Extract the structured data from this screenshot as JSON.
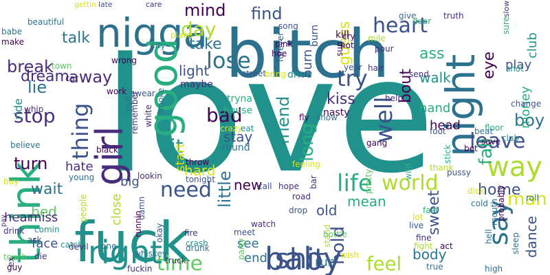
{
  "colors": {
    "purple": "#440154",
    "indigo": "#472d7b",
    "slate": "#3b528b",
    "steel": "#2c728e",
    "teal": "#21918c",
    "sea": "#28ae80",
    "green": "#5ec962",
    "lime": "#addc30",
    "yellow": "#d8e219"
  },
  "words": [
    {
      "text": "love",
      "color": "#21918c"
    },
    {
      "text": "baby",
      "color": "#3b528b"
    },
    {
      "text": "fuck",
      "color": "#21918c"
    },
    {
      "text": "bitch",
      "color": "#2c728e"
    },
    {
      "text": "think",
      "color": "#28ae80"
    },
    {
      "text": "nigga",
      "color": "#2c728e"
    },
    {
      "text": "night",
      "color": "#2c728e"
    },
    {
      "text": "way",
      "color": "#addc30"
    },
    {
      "text": "time",
      "color": "#5ec962"
    },
    {
      "text": "girl",
      "color": "#472d7b"
    },
    {
      "text": "good",
      "color": "#28ae80"
    },
    {
      "text": "right",
      "color": "#21918c"
    },
    {
      "text": "shit",
      "color": "#3b528b"
    },
    {
      "text": "feel",
      "color": "#addc30"
    },
    {
      "text": "life",
      "color": "#28ae80"
    },
    {
      "text": "need",
      "color": "#3b528b"
    },
    {
      "text": "say",
      "color": "#2c728e"
    },
    {
      "text": "heart",
      "color": "#3b528b"
    },
    {
      "text": "lose",
      "color": "#2c728e"
    },
    {
      "text": "bad",
      "color": "#440154"
    },
    {
      "text": "leave",
      "color": "#3b528b"
    },
    {
      "text": "thing",
      "color": "#3b528b"
    },
    {
      "text": "day",
      "color": "#addc30"
    },
    {
      "text": "world",
      "color": "#addc30"
    },
    {
      "text": "stop",
      "color": "#472d7b"
    },
    {
      "text": "try",
      "color": "#3b528b"
    },
    {
      "text": "well",
      "color": "#3b528b"
    },
    {
      "text": "hit",
      "color": "#21918c"
    },
    {
      "text": "boy",
      "color": "#2c728e"
    },
    {
      "text": "man",
      "color": "#d8e219"
    },
    {
      "text": "turn",
      "color": "#440154"
    },
    {
      "text": "wait",
      "color": "#2c728e"
    },
    {
      "text": "home",
      "color": "#3b528b"
    },
    {
      "text": "mind",
      "color": "#440154"
    },
    {
      "text": "break",
      "color": "#472d7b"
    },
    {
      "text": "find",
      "color": "#3b528b"
    },
    {
      "text": "take",
      "color": "#2c728e"
    },
    {
      "text": "talk",
      "color": "#2c728e"
    },
    {
      "text": "away",
      "color": "#472d7b"
    },
    {
      "text": "dream",
      "color": "#472d7b"
    },
    {
      "text": "lie",
      "color": "#2c728e"
    },
    {
      "text": "light",
      "color": "#3b528b"
    },
    {
      "text": "ass",
      "color": "#28ae80"
    },
    {
      "text": "eye",
      "color": "#440154"
    },
    {
      "text": "friend",
      "color": "#21918c"
    },
    {
      "text": "long",
      "color": "#28ae80"
    },
    {
      "text": "bout",
      "color": "#440154"
    },
    {
      "text": "kiss",
      "color": "#472d7b"
    },
    {
      "text": "fall",
      "color": "#28ae80"
    },
    {
      "text": "hand",
      "color": "#28ae80"
    },
    {
      "text": "walk",
      "color": "#21918c"
    },
    {
      "text": "play",
      "color": "#3b528b"
    },
    {
      "text": "guess",
      "color": "#d8e219"
    },
    {
      "text": "burn",
      "color": "#3b528b"
    },
    {
      "text": "hold",
      "color": "#3b528b"
    },
    {
      "text": "little",
      "color": "#2c728e"
    },
    {
      "text": "big",
      "color": "#3b528b"
    },
    {
      "text": "stay",
      "color": "#3b528b"
    },
    {
      "text": "hate",
      "color": "#472d7b"
    },
    {
      "text": "bed",
      "color": "#5ec962"
    },
    {
      "text": "mean",
      "color": "#28ae80"
    },
    {
      "text": "sweet",
      "color": "#3b528b"
    },
    {
      "text": "hear",
      "color": "#472d7b"
    },
    {
      "text": "miss",
      "color": "#472d7b"
    },
    {
      "text": "hard",
      "color": "#d8e219"
    },
    {
      "text": "new",
      "color": "#440154"
    },
    {
      "text": "old",
      "color": "#3b528b"
    },
    {
      "text": "head",
      "color": "#440154"
    },
    {
      "text": "close",
      "color": "#addc30"
    },
    {
      "text": "face",
      "color": "#3b528b"
    },
    {
      "text": "see",
      "color": "#2c728e"
    },
    {
      "text": "end",
      "color": "#2c728e"
    },
    {
      "text": "run",
      "color": "#2c728e"
    },
    {
      "text": "body",
      "color": "#2c728e"
    },
    {
      "text": "dance",
      "color": "#3b528b"
    },
    {
      "text": "money",
      "color": "#28ae80"
    },
    {
      "text": "club",
      "color": "#21918c"
    },
    {
      "text": "start",
      "color": "#d8e219"
    },
    {
      "text": "ride",
      "color": "#21918c"
    },
    {
      "text": "maybe",
      "color": "#472d7b"
    },
    {
      "text": "house",
      "color": "#28ae80"
    },
    {
      "text": "tryna",
      "color": "#28ae80"
    },
    {
      "text": "round",
      "color": "#2c728e"
    },
    {
      "text": "kill",
      "color": "#440154"
    },
    {
      "text": "burn",
      "color": "#3b528b"
    },
    {
      "text": "song",
      "color": "#3b528b"
    },
    {
      "text": "forever",
      "color": "#3b528b"
    },
    {
      "text": "pink",
      "color": "#440154"
    },
    {
      "text": "hoe",
      "color": "#440154"
    },
    {
      "text": "hot",
      "color": "#440154"
    },
    {
      "text": "drive",
      "color": "#21918c"
    },
    {
      "text": "street",
      "color": "#3b528b"
    },
    {
      "text": "year",
      "color": "#3b528b"
    },
    {
      "text": "hair",
      "color": "#472d7b"
    },
    {
      "text": "send",
      "color": "#472d7b"
    },
    {
      "text": "nasty",
      "color": "#440154"
    },
    {
      "text": "help",
      "color": "#472d7b"
    },
    {
      "text": "show",
      "color": "#2c728e"
    },
    {
      "text": "floor",
      "color": "#28ae80"
    },
    {
      "text": "change",
      "color": "#3b528b"
    },
    {
      "text": "shot",
      "color": "#21918c"
    },
    {
      "text": "sure",
      "color": "#28ae80"
    },
    {
      "text": "slow",
      "color": "#472d7b"
    },
    {
      "text": "truth",
      "color": "#472d7b"
    },
    {
      "text": "give",
      "color": "#2c728e"
    },
    {
      "text": "door",
      "color": "#28ae80"
    },
    {
      "text": "sun",
      "color": "#440154"
    },
    {
      "text": "pour",
      "color": "#472d7b"
    },
    {
      "text": "cry",
      "color": "#440154"
    },
    {
      "text": "mile",
      "color": "#addc30"
    },
    {
      "text": "gettin",
      "color": "#d8e219"
    },
    {
      "text": "late",
      "color": "#3b528b"
    },
    {
      "text": "care",
      "color": "#472d7b"
    },
    {
      "text": "beautiful",
      "color": "#2c728e"
    },
    {
      "text": "babe",
      "color": "#2c728e"
    },
    {
      "text": "make",
      "color": "#440154"
    },
    {
      "text": "place",
      "color": "#d8e219"
    },
    {
      "text": "city",
      "color": "#2c728e"
    },
    {
      "text": "town",
      "color": "#5ec962"
    },
    {
      "text": "wrong",
      "color": "#440154"
    },
    {
      "text": "car",
      "color": "#472d7b"
    },
    {
      "text": "work",
      "color": "#440154"
    },
    {
      "text": "whip",
      "color": "#472d7b"
    },
    {
      "text": "swear",
      "color": "#3b528b"
    },
    {
      "text": "pull",
      "color": "#2c728e"
    },
    {
      "text": "smoke",
      "color": "#2c728e"
    },
    {
      "text": "white",
      "color": "#472d7b"
    },
    {
      "text": "remember",
      "color": "#472d7b"
    },
    {
      "text": "believe",
      "color": "#2c728e"
    },
    {
      "text": "black",
      "color": "#440154"
    },
    {
      "text": "lookin",
      "color": "#472d7b"
    },
    {
      "text": "tonight",
      "color": "#3b528b"
    },
    {
      "text": "throw",
      "color": "#440154"
    },
    {
      "text": "call",
      "color": "#3b528b"
    },
    {
      "text": "crazy",
      "color": "#d8e219"
    },
    {
      "text": "eat",
      "color": "#21918c"
    },
    {
      "text": "crash",
      "color": "#21918c"
    },
    {
      "text": "fire",
      "color": "#472d7b"
    },
    {
      "text": "meet",
      "color": "#3b528b"
    },
    {
      "text": "watch",
      "color": "#472d7b"
    },
    {
      "text": "party",
      "color": "#5ec962"
    },
    {
      "text": "drunk",
      "color": "#2c728e"
    },
    {
      "text": "runnin",
      "color": "#440154"
    },
    {
      "text": "whiskey",
      "color": "#2c728e"
    },
    {
      "text": "damn",
      "color": "#3b528b"
    },
    {
      "text": "people",
      "color": "#addc30"
    },
    {
      "text": "young",
      "color": "#2c728e"
    },
    {
      "text": "buy",
      "color": "#d8e219"
    },
    {
      "text": "pay",
      "color": "#472d7b"
    },
    {
      "text": "comin",
      "color": "#21918c"
    },
    {
      "text": "drink",
      "color": "#472d7b"
    },
    {
      "text": "ask",
      "color": "#3b528b"
    },
    {
      "text": "touch",
      "color": "#5ec962"
    },
    {
      "text": "guy",
      "color": "#440154"
    },
    {
      "text": "catch",
      "color": "#21918c"
    },
    {
      "text": "devil",
      "color": "#472d7b"
    },
    {
      "text": "one",
      "color": "#2c728e"
    },
    {
      "text": "die",
      "color": "#472d7b"
    },
    {
      "text": "fuckin",
      "color": "#472d7b"
    },
    {
      "text": "truck",
      "color": "#472d7b"
    },
    {
      "text": "okay",
      "color": "#3b528b"
    },
    {
      "text": "feeling",
      "color": "#d8e219"
    },
    {
      "text": "hope",
      "color": "#472d7b"
    },
    {
      "text": "road",
      "color": "#472d7b"
    },
    {
      "text": "drop",
      "color": "#3b528b"
    },
    {
      "text": "bar",
      "color": "#472d7b"
    },
    {
      "text": "pretty",
      "color": "#5ec962"
    },
    {
      "text": "stand",
      "color": "#addc30"
    },
    {
      "text": "bottle",
      "color": "#5ec962"
    },
    {
      "text": "lot",
      "color": "#d8e219"
    },
    {
      "text": "live",
      "color": "#3b528b"
    },
    {
      "text": "fine",
      "color": "#472d7b"
    },
    {
      "text": "fast",
      "color": "#28ae80"
    },
    {
      "text": "fight",
      "color": "#addc30"
    },
    {
      "text": "true",
      "color": "#2c728e"
    },
    {
      "text": "wish",
      "color": "#d8e219"
    },
    {
      "text": "high",
      "color": "#2c728e"
    },
    {
      "text": "act",
      "color": "#440154"
    },
    {
      "text": "hell",
      "color": "#2c728e"
    },
    {
      "text": "sleep",
      "color": "#2c728e"
    },
    {
      "text": "probably",
      "color": "#440154"
    },
    {
      "text": "roll",
      "color": "#2c728e"
    },
    {
      "text": "cold",
      "color": "#2c728e"
    },
    {
      "text": "dick",
      "color": "#d8e219"
    },
    {
      "text": "bet",
      "color": "#440154"
    },
    {
      "text": "club",
      "color": "#21918c"
    },
    {
      "text": "save",
      "color": "#440154"
    },
    {
      "text": "beat",
      "color": "#2c728e"
    },
    {
      "text": "foot",
      "color": "#3b528b"
    },
    {
      "text": "stick",
      "color": "#28ae80"
    },
    {
      "text": "thank",
      "color": "#addc30"
    },
    {
      "text": "pussy",
      "color": "#3b528b"
    },
    {
      "text": "gang",
      "color": "#440154"
    },
    {
      "text": "wild",
      "color": "#28ae80"
    },
    {
      "text": "fly",
      "color": "#440154"
    },
    {
      "text": "ex",
      "color": "#472d7b"
    },
    {
      "text": "mouth",
      "color": "#2c728e"
    },
    {
      "text": "bring",
      "color": "#d8e219"
    },
    {
      "text": "kind",
      "color": "#472d7b"
    }
  ]
}
